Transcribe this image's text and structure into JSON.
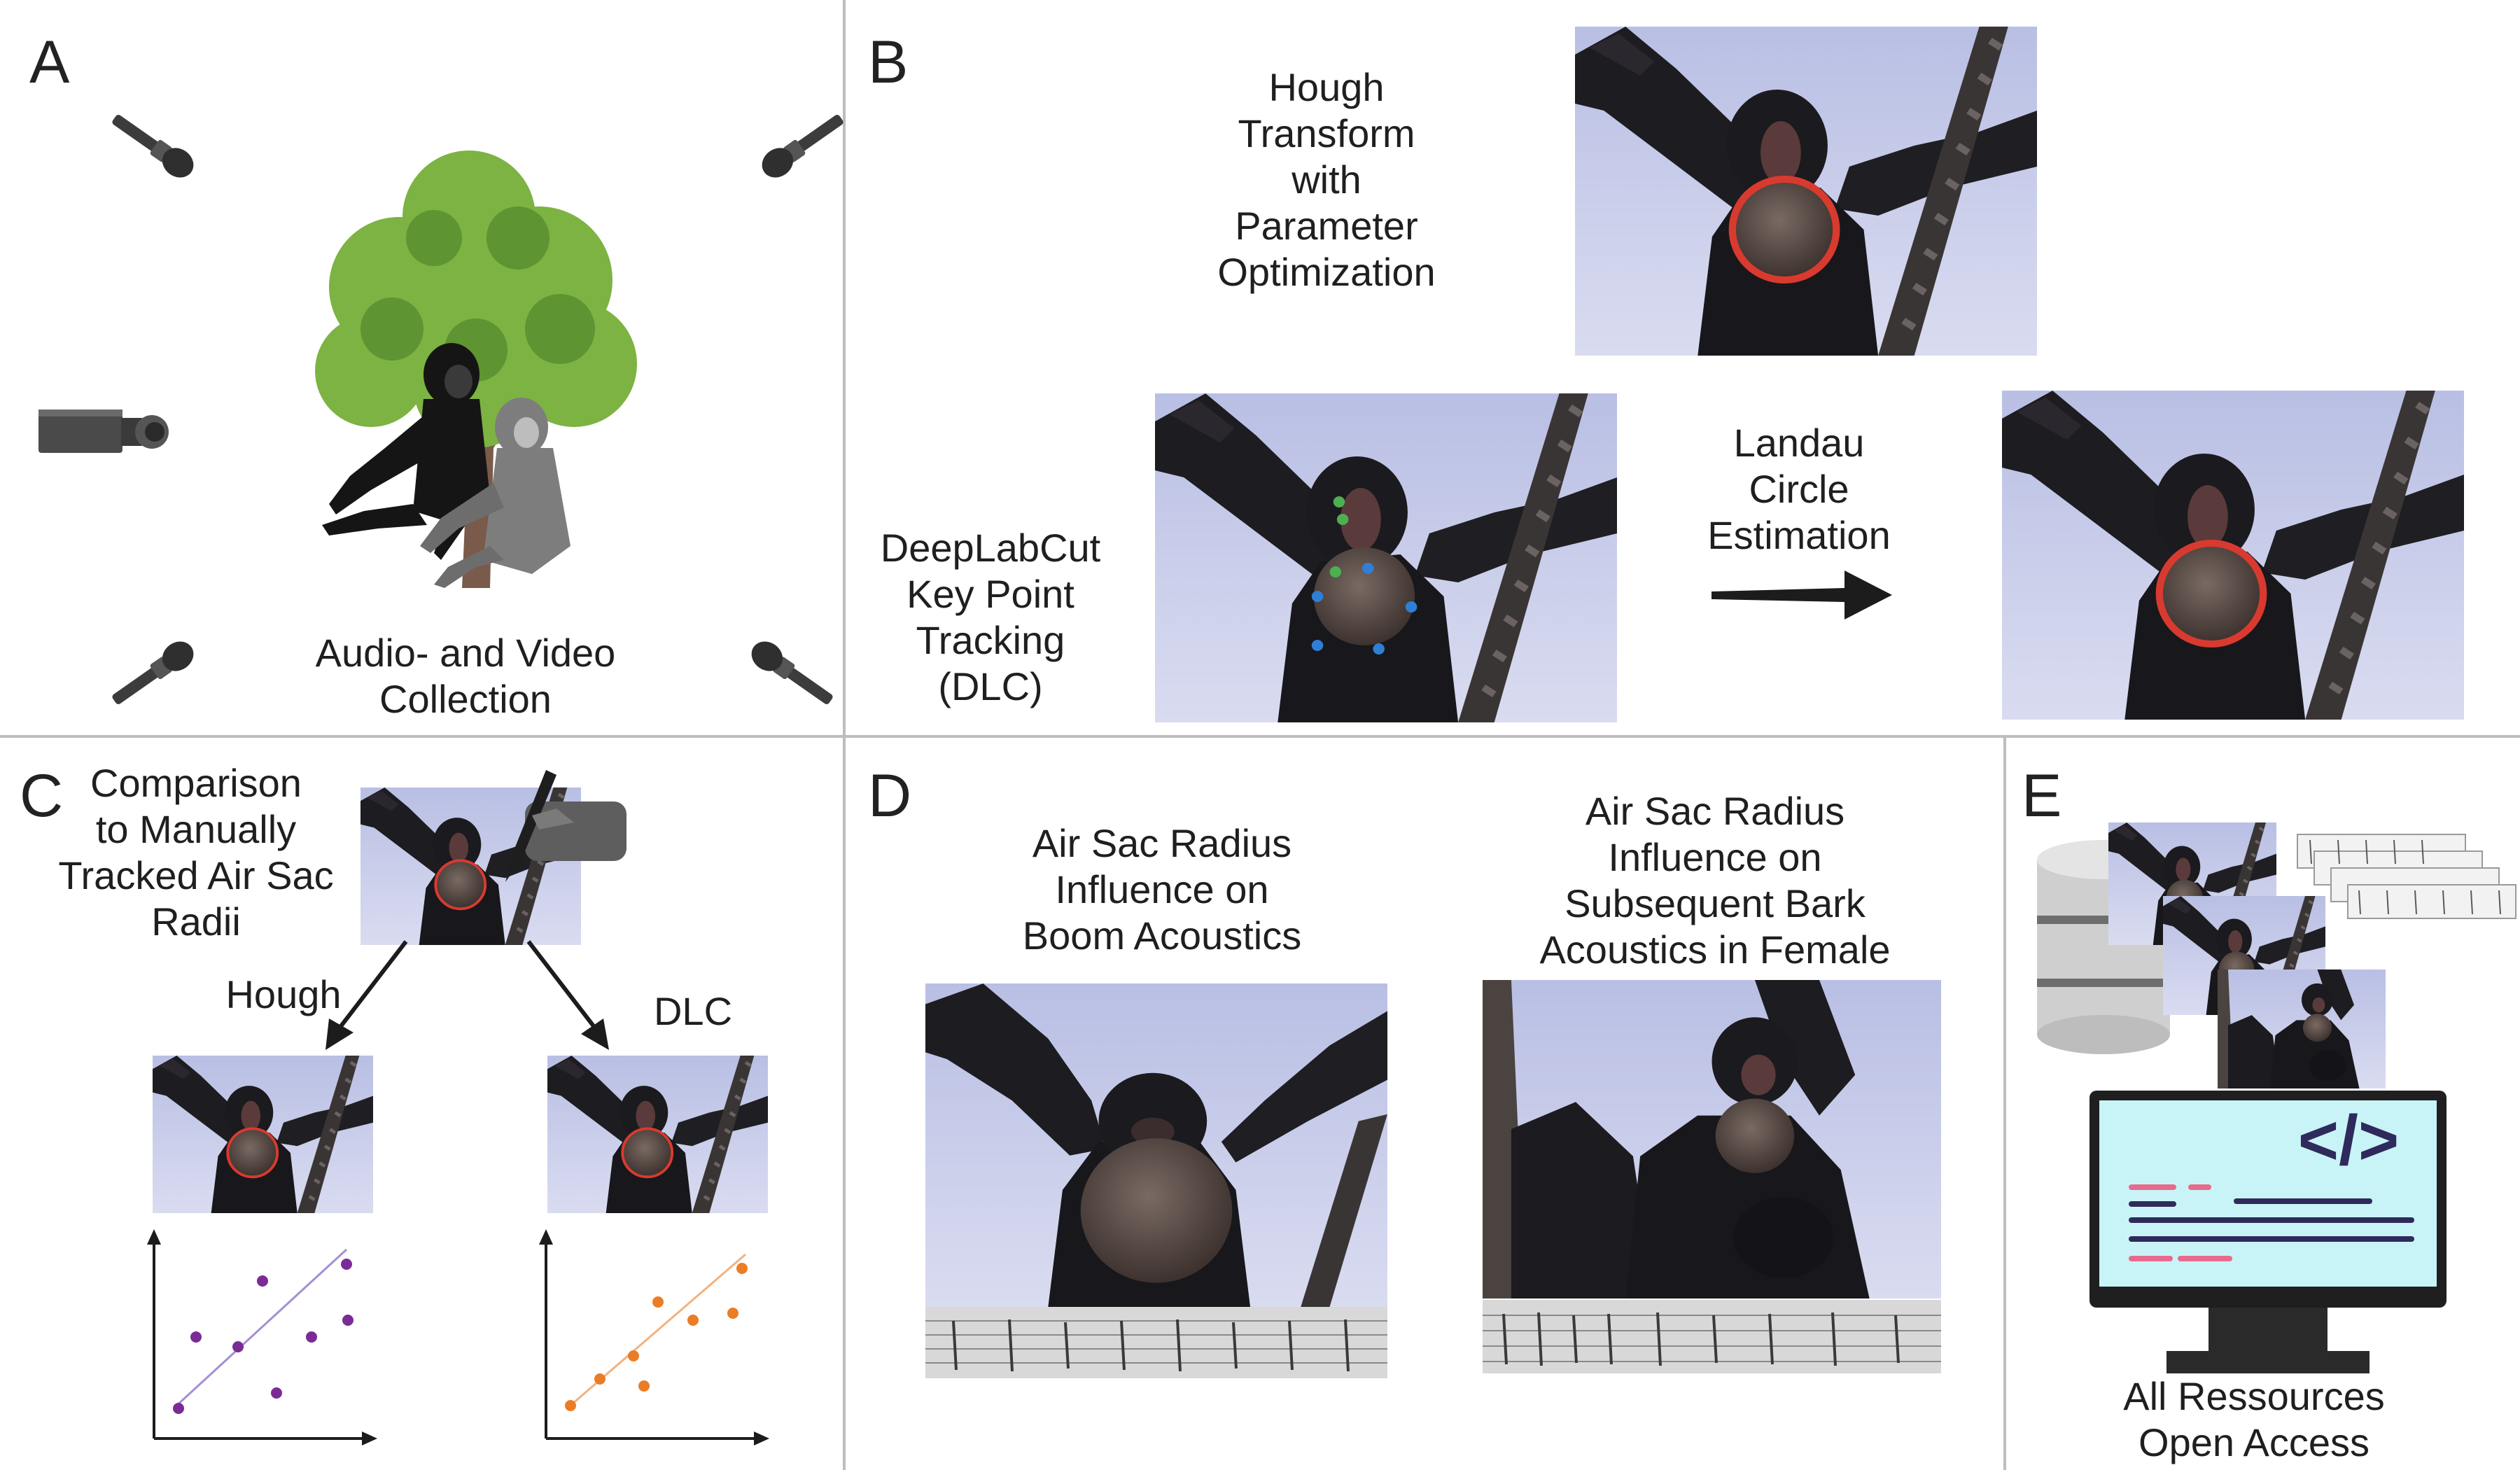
{
  "panels": {
    "a": {
      "letter": "A",
      "caption": [
        "Audio- and Video",
        "Collection"
      ],
      "icons": [
        "microphone-icon",
        "video-camera-icon",
        "tree-icon",
        "gibbon-icon"
      ]
    },
    "b": {
      "letter": "B",
      "hough_caption": [
        "Hough",
        "Transform",
        "with",
        "Parameter",
        "Optimization"
      ],
      "dlc_caption": [
        "DeepLabCut",
        "Key Point",
        "Tracking",
        "(DLC)"
      ],
      "landau_caption": [
        "Landau",
        "Circle",
        "Estimation"
      ],
      "icons": [
        "arrow-right-icon"
      ]
    },
    "c": {
      "letter": "C",
      "caption": [
        "Comparison",
        "to Manually",
        "Tracked Air Sac",
        "Radii"
      ],
      "hough_label": "Hough",
      "dlc_label": "DLC",
      "icons": [
        "hand-pen-icon",
        "arrow-icon",
        "scatter-plot-icon"
      ]
    },
    "d": {
      "letter": "D",
      "boom_caption": [
        "Air Sac Radius",
        "Influence on",
        "Boom Acoustics"
      ],
      "bark_caption": [
        "Air Sac Radius",
        "Influence on",
        "Subsequent Bark",
        "Acoustics in Female"
      ],
      "icons": [
        "spectrogram-icon"
      ]
    },
    "e": {
      "letter": "E",
      "caption": [
        "All Ressources",
        "Open Access"
      ],
      "code_symbol": "</>",
      "icons": [
        "database-icon",
        "monitor-icon",
        "code-icon"
      ]
    }
  },
  "colors": {
    "hough_circle": "#d93a2f",
    "dlc_green": "#4caf50",
    "dlc_blue": "#2f7fd6",
    "scatter_purple": "#7b2b96",
    "scatter_orange": "#ea7d26",
    "divider": "#bdbdbd",
    "tree_green": "#7cb342",
    "monitor_screen": "#c9f4f7",
    "code_navy": "#2e2a5c",
    "code_pink": "#e86a8d"
  }
}
